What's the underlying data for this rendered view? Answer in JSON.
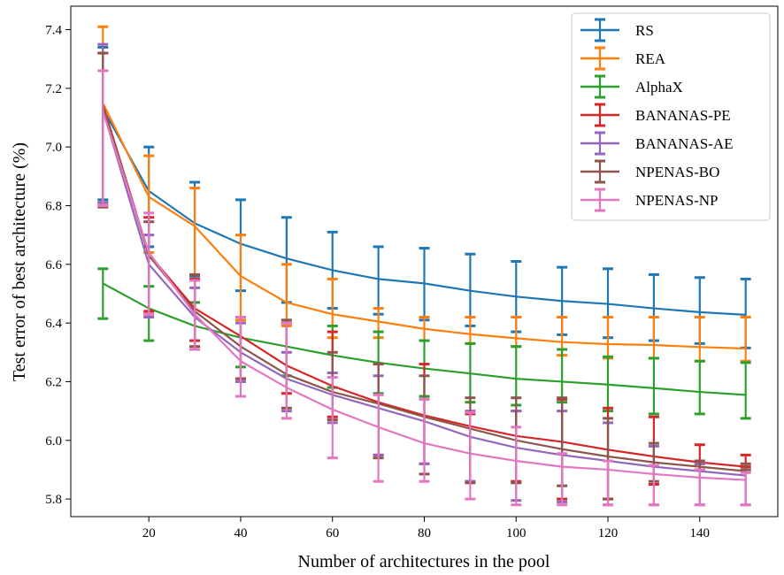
{
  "chart_data": {
    "type": "line",
    "title": "",
    "xlabel": "Number of architectures in the pool",
    "ylabel": "Test error of best architecture (%)",
    "xlim": [
      3,
      157
    ],
    "ylim": [
      5.74,
      7.48
    ],
    "xticks": [
      20,
      40,
      60,
      80,
      100,
      120,
      140
    ],
    "yticks": [
      5.8,
      6.0,
      6.2,
      6.4,
      6.6,
      6.8,
      7.0,
      7.2,
      7.4
    ],
    "xtick_labels": [
      "20",
      "40",
      "60",
      "80",
      "100",
      "120",
      "140"
    ],
    "ytick_labels": [
      "5.8",
      "6.0",
      "6.2",
      "6.4",
      "6.6",
      "6.8",
      "7.0",
      "7.2",
      "7.4"
    ],
    "legend_position": "top-right",
    "grid": false,
    "x": [
      10,
      20,
      30,
      40,
      50,
      60,
      70,
      80,
      90,
      100,
      110,
      120,
      130,
      140,
      150
    ],
    "series": [
      {
        "name": "RS",
        "color": "#1f77b4",
        "x_offset": 0,
        "mean": [
          7.13,
          6.85,
          6.74,
          6.67,
          6.62,
          6.58,
          6.55,
          6.535,
          6.51,
          6.49,
          6.475,
          6.465,
          6.45,
          6.437,
          6.428
        ],
        "lower": [
          6.82,
          6.66,
          6.56,
          6.51,
          6.47,
          6.45,
          6.43,
          6.41,
          6.39,
          6.37,
          6.36,
          6.35,
          6.34,
          6.33,
          6.315
        ],
        "upper": [
          7.34,
          7.0,
          6.88,
          6.82,
          6.76,
          6.71,
          6.66,
          6.655,
          6.635,
          6.61,
          6.59,
          6.585,
          6.565,
          6.555,
          6.55
        ]
      },
      {
        "name": "REA",
        "color": "#ff7f0e",
        "x_offset": 0,
        "mean": [
          7.15,
          6.83,
          6.73,
          6.56,
          6.47,
          6.43,
          6.405,
          6.38,
          6.362,
          6.348,
          6.335,
          6.328,
          6.325,
          6.318,
          6.313
        ],
        "lower": [
          6.81,
          6.64,
          6.55,
          6.41,
          6.39,
          6.35,
          6.35,
          6.34,
          6.33,
          6.32,
          6.29,
          6.28,
          6.28,
          6.27,
          6.27
        ],
        "upper": [
          7.41,
          6.97,
          6.86,
          6.7,
          6.6,
          6.55,
          6.45,
          6.42,
          6.42,
          6.42,
          6.42,
          6.42,
          6.42,
          6.42,
          6.42
        ]
      },
      {
        "name": "AlphaX",
        "color": "#2ca02c",
        "x_offset": 0,
        "mean": [
          6.535,
          6.45,
          6.39,
          6.35,
          6.32,
          6.29,
          6.265,
          6.245,
          6.228,
          6.21,
          6.2,
          6.19,
          6.178,
          6.165,
          6.155
        ],
        "lower": [
          6.415,
          6.34,
          6.31,
          6.25,
          6.22,
          6.18,
          6.16,
          6.15,
          6.13,
          6.12,
          6.13,
          6.1,
          6.09,
          6.09,
          6.075
        ],
        "upper": [
          6.585,
          6.525,
          6.47,
          6.42,
          6.4,
          6.39,
          6.37,
          6.34,
          6.33,
          6.32,
          6.31,
          6.285,
          6.28,
          6.27,
          6.265
        ]
      },
      {
        "name": "BANANAS-PE",
        "color": "#d62728",
        "x_offset": 0,
        "mean": [
          7.145,
          6.635,
          6.45,
          6.355,
          6.255,
          6.185,
          6.13,
          6.085,
          6.048,
          6.015,
          5.995,
          5.968,
          5.945,
          5.925,
          5.91
        ],
        "lower": [
          6.8,
          6.44,
          6.34,
          6.21,
          6.16,
          6.08,
          5.95,
          5.92,
          5.86,
          5.86,
          5.8,
          5.8,
          5.85,
          5.92,
          5.91
        ],
        "upper": [
          7.32,
          6.76,
          6.55,
          6.42,
          6.4,
          6.37,
          6.26,
          6.26,
          6.09,
          6.1,
          6.14,
          6.11,
          6.08,
          5.985,
          5.95
        ]
      },
      {
        "name": "BANANAS-AE",
        "color": "#9467bd",
        "x_offset": 0,
        "mean": [
          7.125,
          6.6,
          6.42,
          6.3,
          6.21,
          6.155,
          6.11,
          6.065,
          6.012,
          5.975,
          5.95,
          5.93,
          5.91,
          5.895,
          5.88
        ],
        "lower": [
          6.81,
          6.42,
          6.31,
          6.2,
          6.1,
          6.06,
          5.95,
          5.92,
          5.86,
          5.795,
          5.79,
          5.78,
          5.78,
          5.78,
          5.78
        ],
        "upper": [
          7.35,
          6.7,
          6.52,
          6.4,
          6.3,
          6.23,
          6.22,
          6.14,
          6.1,
          6.1,
          6.1,
          6.06,
          5.98,
          5.92,
          5.9
        ]
      },
      {
        "name": "NPENAS-BO",
        "color": "#8c564b",
        "x_offset": 0,
        "mean": [
          7.14,
          6.63,
          6.44,
          6.32,
          6.225,
          6.165,
          6.125,
          6.08,
          6.04,
          6.0,
          5.97,
          5.945,
          5.925,
          5.91,
          5.895
        ],
        "lower": [
          6.795,
          6.43,
          6.32,
          6.21,
          6.11,
          6.07,
          5.94,
          5.885,
          5.855,
          5.855,
          5.845,
          5.8,
          5.86,
          5.9,
          5.9
        ],
        "upper": [
          7.32,
          6.745,
          6.565,
          6.42,
          6.41,
          6.3,
          6.26,
          6.22,
          6.145,
          6.145,
          6.145,
          6.075,
          5.99,
          5.93,
          5.92
        ]
      },
      {
        "name": "NPENAS-NP",
        "color": "#e377c2",
        "x_offset": 0,
        "mean": [
          7.12,
          6.64,
          6.43,
          6.27,
          6.18,
          6.105,
          6.045,
          5.99,
          5.955,
          5.93,
          5.91,
          5.9,
          5.885,
          5.873,
          5.865
        ],
        "lower": [
          6.8,
          6.43,
          6.31,
          6.15,
          6.075,
          5.94,
          5.86,
          5.86,
          5.8,
          5.78,
          5.78,
          5.78,
          5.78,
          5.78,
          5.78
        ],
        "upper": [
          7.26,
          6.775,
          6.545,
          6.42,
          6.4,
          6.215,
          6.155,
          6.14,
          6.095,
          6.045,
          5.955,
          5.93,
          5.915,
          5.9,
          5.89
        ]
      }
    ]
  }
}
